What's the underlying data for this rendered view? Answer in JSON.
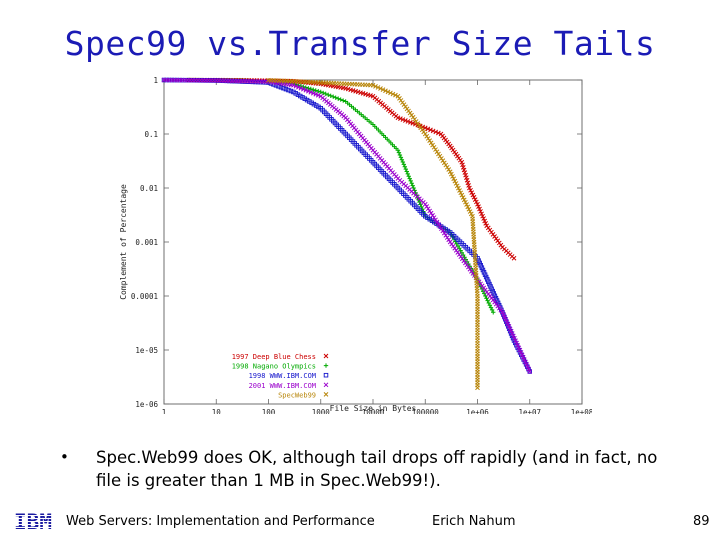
{
  "slide": {
    "title": "Spec99 vs.Transfer Size Tails",
    "bullet": "Spec.Web99 does OK, although tail drops off rapidly (and in fact, no file is greater than 1 MB in Spec.Web99!).",
    "footer_left": "Web Servers: Implementation and Performance",
    "footer_center": "Erich Nahum",
    "page_number": "89",
    "logo_text": "IBM"
  },
  "chart_data": {
    "type": "scatter",
    "title": "",
    "xlabel": "File Size in Bytes",
    "ylabel": "Complement of Percentage",
    "xscale": "log",
    "yscale": "log",
    "xlim": [
      1,
      100000000
    ],
    "ylim": [
      1e-06,
      1
    ],
    "x_ticks": [
      "1",
      "10",
      "100",
      "1000",
      "10000",
      "100000",
      "1e+06",
      "1e+07",
      "1e+08"
    ],
    "y_ticks": [
      "1",
      "0.1",
      "0.01",
      "0.001",
      "0.0001",
      "1e-05",
      "1e-06"
    ],
    "legend_position": "bottom-right",
    "series": [
      {
        "name": "1997 Deep Blue Chess",
        "color": "#cc0000",
        "marker": "x",
        "points": [
          [
            3,
            1
          ],
          [
            30,
            0.99
          ],
          [
            300,
            0.95
          ],
          [
            1000,
            0.85
          ],
          [
            3000,
            0.7
          ],
          [
            10000,
            0.5
          ],
          [
            30000,
            0.2
          ],
          [
            100000,
            0.13
          ],
          [
            200000,
            0.1
          ],
          [
            300000,
            0.06
          ],
          [
            500000,
            0.03
          ],
          [
            700000,
            0.01
          ],
          [
            1000000,
            0.005
          ],
          [
            1500000,
            0.002
          ],
          [
            3000000,
            0.0008
          ],
          [
            5000000,
            0.0005
          ]
        ]
      },
      {
        "name": "1998 Nagano Olympics",
        "color": "#00aa00",
        "marker": "+",
        "points": [
          [
            3,
            1
          ],
          [
            30,
            0.98
          ],
          [
            300,
            0.85
          ],
          [
            1000,
            0.6
          ],
          [
            3000,
            0.4
          ],
          [
            10000,
            0.15
          ],
          [
            30000,
            0.05
          ],
          [
            60000,
            0.01
          ],
          [
            100000,
            0.003
          ],
          [
            300000,
            0.0015
          ],
          [
            1000000,
            0.0002
          ],
          [
            2000000,
            5e-05
          ]
        ]
      },
      {
        "name": "1998 WWW.IBM.COM",
        "color": "#1515cc",
        "marker": "square",
        "points": [
          [
            1,
            1
          ],
          [
            10,
            0.98
          ],
          [
            100,
            0.9
          ],
          [
            300,
            0.6
          ],
          [
            1000,
            0.3
          ],
          [
            3000,
            0.1
          ],
          [
            10000,
            0.03
          ],
          [
            30000,
            0.01
          ],
          [
            100000,
            0.003
          ],
          [
            300000,
            0.0015
          ],
          [
            1000000,
            0.0005
          ],
          [
            3000000,
            5e-05
          ],
          [
            5000000,
            1.5e-05
          ],
          [
            10000000,
            4e-06
          ]
        ]
      },
      {
        "name": "2001 WWW.IBM.COM",
        "color": "#9a00cc",
        "marker": "x",
        "points": [
          [
            1,
            1
          ],
          [
            10,
            0.98
          ],
          [
            100,
            0.93
          ],
          [
            300,
            0.8
          ],
          [
            1000,
            0.5
          ],
          [
            3000,
            0.2
          ],
          [
            10000,
            0.05
          ],
          [
            30000,
            0.015
          ],
          [
            100000,
            0.005
          ],
          [
            300000,
            0.001
          ],
          [
            1000000,
            0.0002
          ],
          [
            3000000,
            5e-05
          ],
          [
            10000000,
            4e-06
          ]
        ]
      },
      {
        "name": "SpecWeb99",
        "color": "#b8860b",
        "marker": "x",
        "points": [
          [
            100,
            0.99
          ],
          [
            1000,
            0.9
          ],
          [
            10000,
            0.8
          ],
          [
            30000,
            0.5
          ],
          [
            100000,
            0.1
          ],
          [
            300000,
            0.02
          ],
          [
            800000,
            0.003
          ],
          [
            1000000,
            0.0001
          ],
          [
            1000000,
            2e-06
          ]
        ]
      }
    ]
  }
}
